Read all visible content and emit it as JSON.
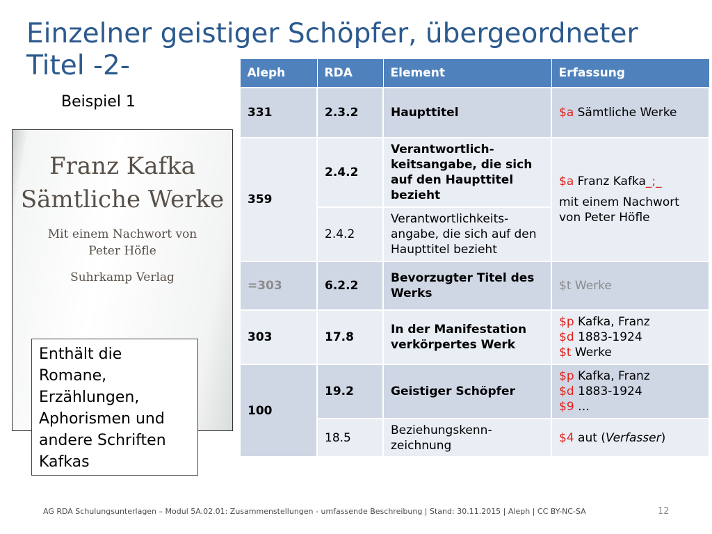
{
  "title": "Einzelner geistiger Schöpfer, übergeordneter Titel -2-",
  "subtitle": "Beispiel 1",
  "cover": {
    "author": "Franz Kafka",
    "work": "Sämtliche Werke",
    "note_line1": "Mit einem Nachwort von",
    "note_line2": "Peter Höfle",
    "publisher": "Suhrkamp Verlag"
  },
  "callout": "Enthält die Romane, Erzählungen, Aphorismen und andere Schriften Kafkas",
  "table": {
    "headers": [
      "Aleph",
      "RDA",
      "Element",
      "Erfassung"
    ],
    "rows": [
      {
        "aleph": "331",
        "rda": "2.3.2",
        "element": "Haupttitel",
        "erf_code": "$a",
        "erf_text": " Sämtliche Werke"
      },
      {
        "aleph": "359",
        "rda": "2.4.2",
        "element": "Verantwortlich-keitsangabe, die sich auf den Haupttitel bezieht",
        "erf_code": "$a",
        "erf_text": " Franz Kafka",
        "erf_sep": "_;_",
        "erf_text2": "mit einem Nachwort von Peter Höfle"
      },
      {
        "rda": "2.4.2",
        "element": "Verantwortlichkeits-angabe, die sich auf den Haupttitel bezieht"
      },
      {
        "aleph": "=303",
        "rda": "6.2.2",
        "element": "Bevorzugter Titel des Werks",
        "erf_code": "$t",
        "erf_text": " Werke"
      },
      {
        "aleph": "303",
        "rda": "17.8",
        "element": "In der Manifestation verkörpertes Werk",
        "lines": [
          {
            "code": "$p",
            "text": " Kafka, Franz"
          },
          {
            "code": "$d",
            "text": " 1883-1924"
          },
          {
            "code": "$t",
            "text": " Werke"
          }
        ]
      },
      {
        "aleph": "100",
        "rda": "19.2",
        "element": "Geistiger Schöpfer",
        "lines": [
          {
            "code": "$p",
            "text": " Kafka, Franz"
          },
          {
            "code": "$d",
            "text": " 1883-1924"
          },
          {
            "code": "$9",
            "text": " …"
          }
        ]
      },
      {
        "rda": "18.5",
        "element": "Beziehungskenn-zeichnung",
        "erf_code": "$4",
        "erf_text": " aut (",
        "erf_italic": "Verfasser",
        "erf_text2": ")"
      }
    ]
  },
  "footer": "AG RDA Schulungsunterlagen – Modul 5A.02.01: Zusammenstellungen - umfassende Beschreibung | Stand: 30.11.2015 | Aleph | CC BY-NC-SA",
  "page_number": "12",
  "colors": {
    "title": "#2c5a8e",
    "header": "#4f81bd",
    "row_dark": "#cfd7e5",
    "row_light": "#e9edf4",
    "code_red": "#e0231c",
    "muted_gray": "#8c8c8c"
  }
}
